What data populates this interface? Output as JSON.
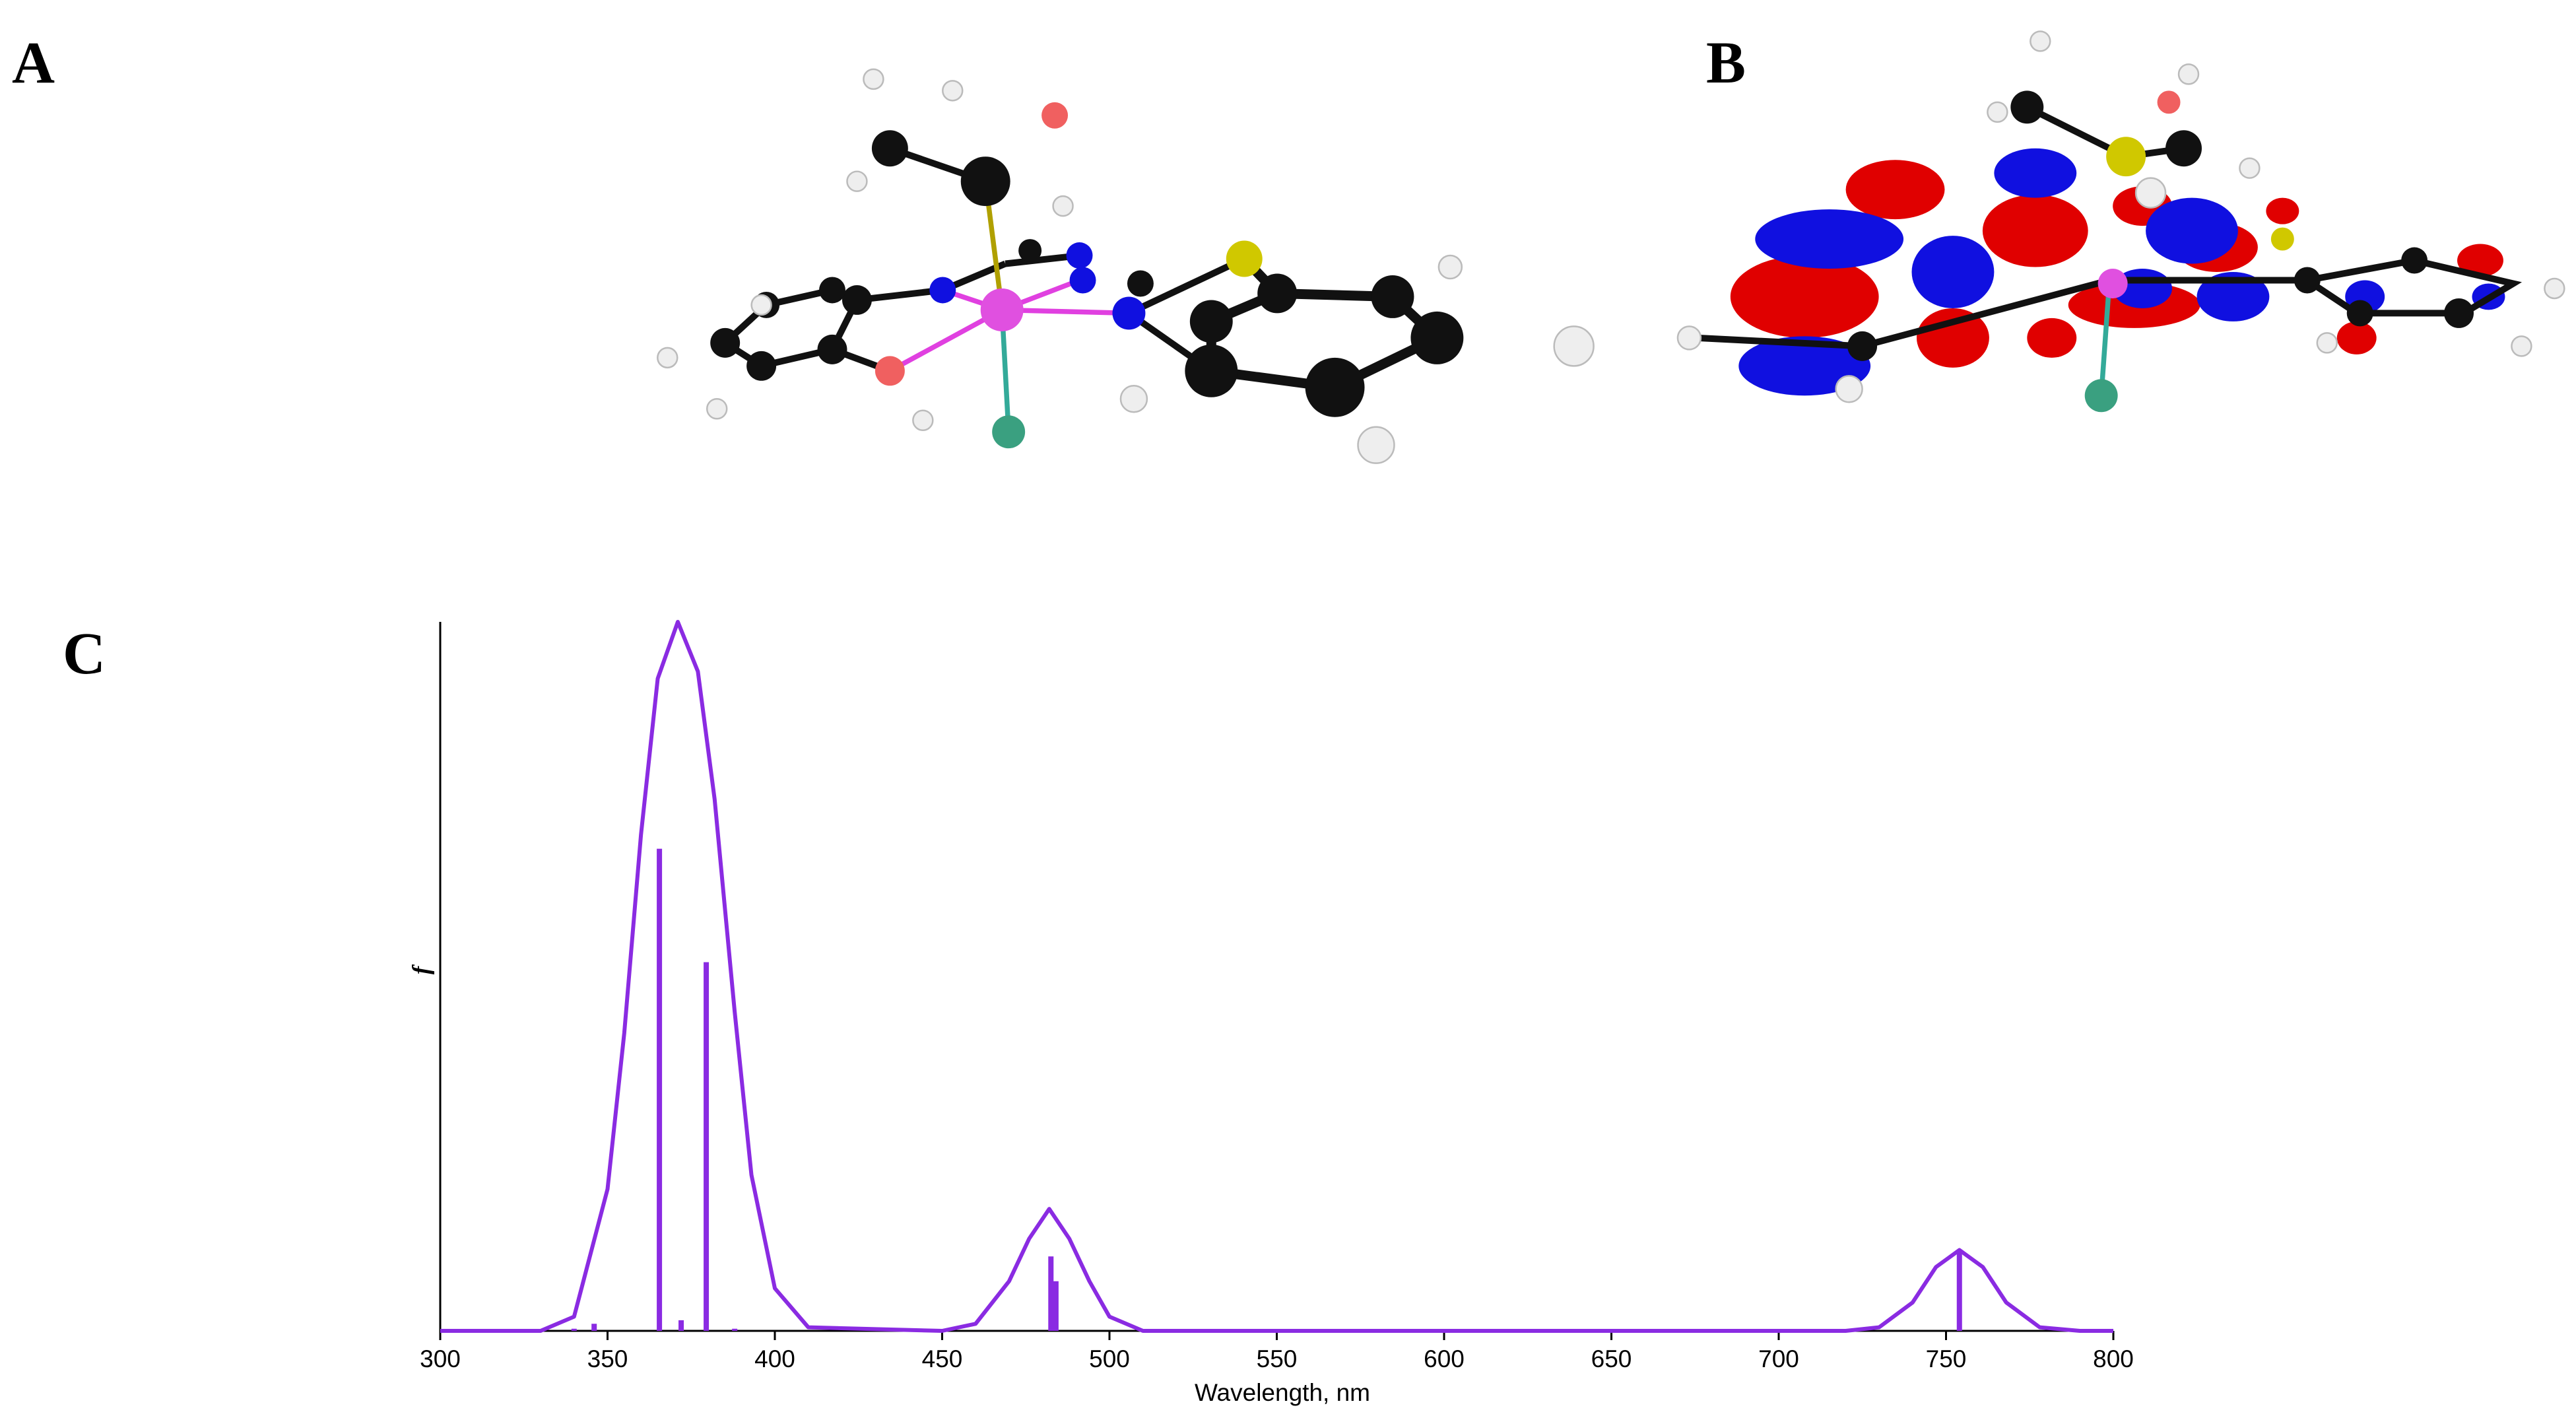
{
  "panels": [
    "A",
    "B",
    "C"
  ],
  "chart_data": {
    "type": "line",
    "xlabel": "Wavelength, nm",
    "ylabel": "f",
    "color": "#8a2be2",
    "x": [
      300,
      330,
      340,
      350,
      355,
      360,
      365,
      371,
      377,
      382,
      388,
      393,
      400,
      410,
      450,
      460,
      470,
      476,
      482,
      488,
      494,
      500,
      510,
      720,
      730,
      740,
      747,
      754,
      761,
      768,
      778,
      790,
      800
    ],
    "values": [
      0,
      0,
      0.02,
      0.2,
      0.42,
      0.7,
      0.92,
      1.0,
      0.93,
      0.75,
      0.45,
      0.22,
      0.06,
      0.005,
      0,
      0.01,
      0.07,
      0.13,
      0.172,
      0.13,
      0.07,
      0.02,
      0,
      0,
      0.005,
      0.04,
      0.09,
      0.114,
      0.09,
      0.04,
      0.005,
      0,
      0
    ],
    "sticks": {
      "x": [
        340,
        346,
        365.5,
        372,
        379.5,
        388,
        482.5,
        484,
        754
      ],
      "values": [
        0.003,
        0.01,
        0.68,
        0.015,
        0.52,
        0.003,
        0.105,
        0.07,
        0.114
      ]
    },
    "xlim": [
      300,
      800
    ],
    "ylim": [
      0,
      1
    ],
    "xticks": [
      300,
      350,
      400,
      450,
      500,
      550,
      600,
      650,
      700,
      750,
      800
    ]
  }
}
